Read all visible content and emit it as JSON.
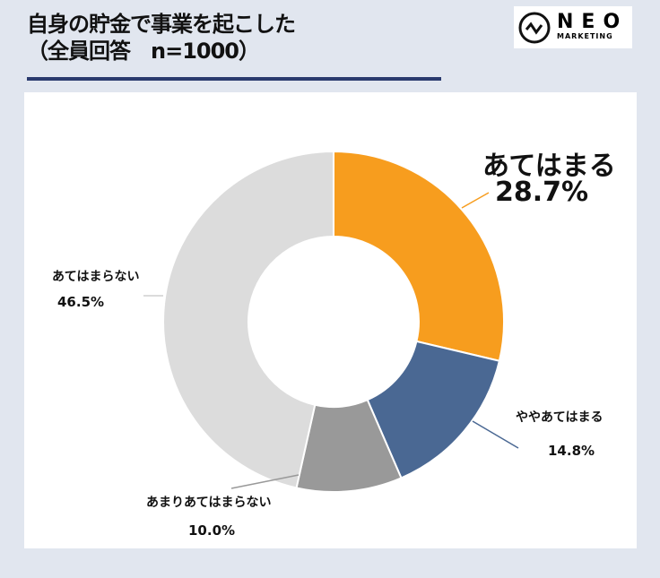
{
  "title": {
    "line1": "自身の貯金で事業を起こした",
    "line2": "（全員回答　n=1000）"
  },
  "logo": {
    "name": "NEO",
    "sub": "MARKETING"
  },
  "chart_data": {
    "type": "pie",
    "donut": true,
    "title": "自身の貯金で事業を起こした（全員回答　n=1000）",
    "categories": [
      "あてはまる",
      "ややあてはまる",
      "あまりあてはまらない",
      "あてはまらない"
    ],
    "values": [
      28.7,
      14.8,
      10.0,
      46.5
    ],
    "labels": [
      "28.7%",
      "14.8%",
      "10.0%",
      "46.5%"
    ],
    "colors": [
      "#f79d1e",
      "#4a6893",
      "#999999",
      "#dcdcdc"
    ]
  }
}
